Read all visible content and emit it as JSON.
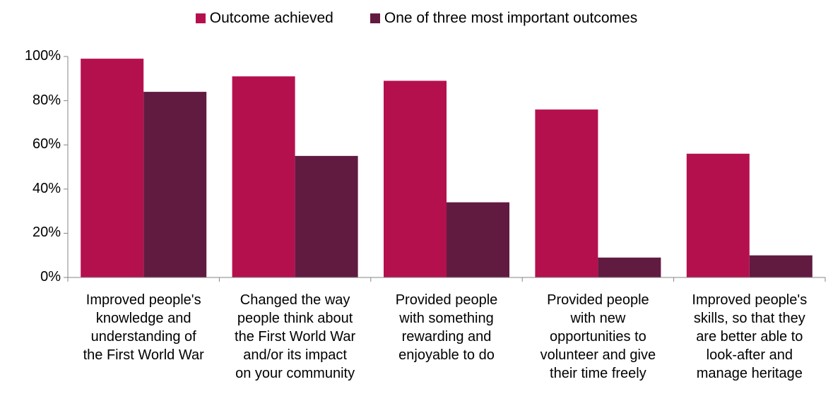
{
  "chart_data": {
    "type": "bar",
    "categories": [
      "Improved people's\nknowledge and\nunderstanding of\nthe First World War",
      "Changed the way\npeople think about\nthe First World War\nand/or its impact\non your community",
      "Provided people\nwith something\nrewarding and\nenjoyable to do",
      "Provided people\nwith new\nopportunities to\nvolunteer and give\ntheir time freely",
      "Improved people's\nskills, so that they\nare better able to\nlook-after and\nmanage heritage"
    ],
    "series": [
      {
        "name": "Outcome achieved",
        "color": "#B5104E",
        "values": [
          99,
          91,
          89,
          76,
          56
        ]
      },
      {
        "name": "One of three most important outcomes",
        "color": "#621B40",
        "values": [
          84,
          55,
          34,
          9,
          10
        ]
      }
    ],
    "ylim": [
      0,
      100
    ],
    "yticks": [
      "0%",
      "20%",
      "40%",
      "60%",
      "80%",
      "100%"
    ],
    "legend_position": "top-center",
    "grid": false
  }
}
